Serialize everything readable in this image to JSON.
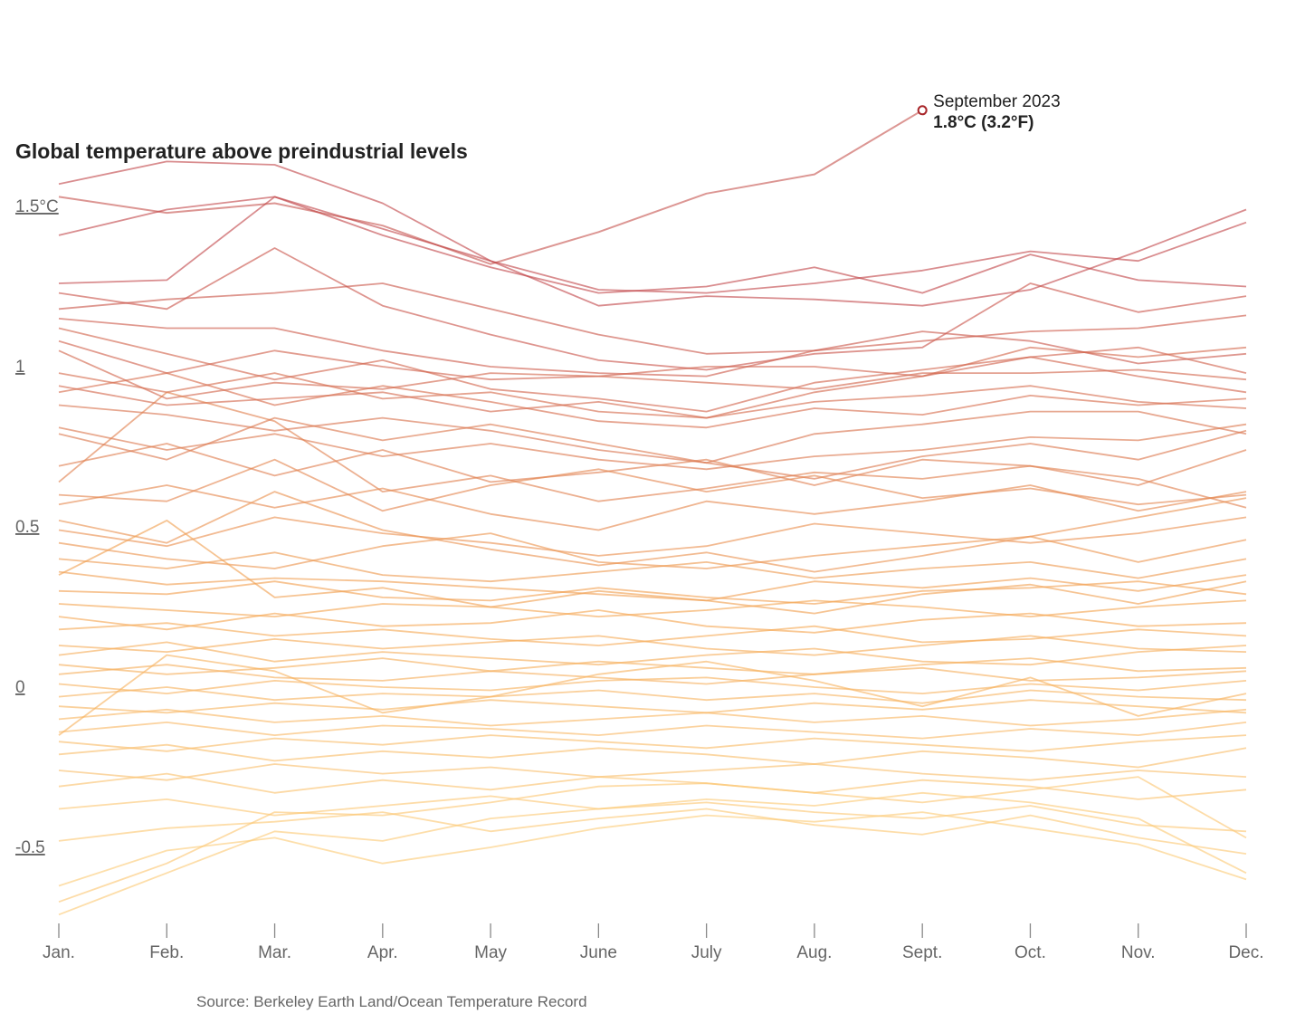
{
  "chart_data": {
    "type": "line",
    "title": "Global temperature above preindustrial levels",
    "categories": [
      "Jan.",
      "Feb.",
      "Mar.",
      "Apr.",
      "May",
      "June",
      "July",
      "Aug.",
      "Sept.",
      "Oct.",
      "Nov.",
      "Dec."
    ],
    "y_ticks": [
      {
        "value": 1.5,
        "label": "1.5°C"
      },
      {
        "value": 1,
        "label": "1"
      },
      {
        "value": 0.5,
        "label": "0.5"
      },
      {
        "value": 0,
        "label": "0"
      },
      {
        "value": -0.5,
        "label": "-0.5"
      }
    ],
    "ylim": [
      -0.72,
      1.72
    ],
    "color_low": "#fdd17e",
    "color_mid": "#f4a450",
    "color_high": "#c2474a",
    "highlight_color": "#c0403a",
    "highlight": {
      "values": [
        1.53,
        1.48,
        1.51,
        1.44,
        1.32,
        1.42,
        1.54,
        1.6,
        1.8
      ],
      "annotation_title": "September 2023",
      "annotation_value": "1.8°C (3.2°F)"
    },
    "series": [
      {
        "values": [
          1.57,
          1.64,
          1.63,
          1.51,
          1.33,
          1.19,
          1.22,
          1.21,
          1.19,
          1.24,
          1.36,
          1.49
        ]
      },
      {
        "values": [
          1.41,
          1.49,
          1.53,
          1.43,
          1.33,
          1.24,
          1.23,
          1.26,
          1.3,
          1.36,
          1.33,
          1.45
        ]
      },
      {
        "values": [
          1.26,
          1.27,
          1.53,
          1.41,
          1.31,
          1.23,
          1.25,
          1.31,
          1.23,
          1.35,
          1.27,
          1.25
        ]
      },
      {
        "values": [
          1.18,
          1.21,
          1.23,
          1.26,
          1.18,
          1.1,
          1.04,
          1.05,
          1.11,
          1.08,
          1.01,
          1.04
        ]
      },
      {
        "values": [
          1.23,
          1.18,
          1.37,
          1.19,
          1.1,
          1.02,
          0.99,
          1.04,
          1.06,
          1.26,
          1.17,
          1.22
        ]
      },
      {
        "values": [
          1.15,
          1.12,
          1.12,
          1.05,
          1.0,
          0.98,
          0.97,
          1.05,
          1.08,
          1.11,
          1.12,
          1.16
        ]
      },
      {
        "values": [
          1.08,
          0.98,
          1.05,
          1.0,
          0.96,
          0.97,
          1.0,
          1.0,
          0.97,
          1.03,
          1.06,
          0.98
        ]
      },
      {
        "values": [
          1.05,
          0.9,
          0.95,
          0.93,
          0.98,
          0.97,
          0.95,
          0.93,
          0.98,
          0.98,
          0.99,
          0.96
        ]
      },
      {
        "values": [
          0.94,
          0.88,
          0.9,
          0.92,
          0.86,
          0.89,
          0.84,
          0.92,
          0.97,
          1.06,
          1.03,
          1.06
        ]
      },
      {
        "values": [
          0.98,
          0.92,
          0.98,
          0.9,
          0.92,
          0.86,
          0.84,
          0.89,
          0.91,
          0.94,
          0.89,
          0.87
        ]
      },
      {
        "values": [
          0.88,
          0.85,
          0.8,
          0.84,
          0.8,
          0.74,
          0.7,
          0.79,
          0.82,
          0.86,
          0.86,
          0.79
        ]
      },
      {
        "values": [
          0.81,
          0.74,
          0.79,
          0.72,
          0.76,
          0.71,
          0.68,
          0.72,
          0.74,
          0.78,
          0.77,
          0.82
        ]
      },
      {
        "values": [
          0.69,
          0.76,
          0.66,
          0.74,
          0.64,
          0.67,
          0.71,
          0.63,
          0.71,
          0.69,
          0.63,
          0.74
        ]
      },
      {
        "values": [
          0.64,
          0.92,
          0.83,
          0.61,
          0.66,
          0.58,
          0.62,
          0.67,
          0.65,
          0.69,
          0.65,
          0.56
        ]
      },
      {
        "values": [
          0.57,
          0.63,
          0.56,
          0.62,
          0.54,
          0.49,
          0.58,
          0.54,
          0.58,
          0.63,
          0.55,
          0.61
        ]
      },
      {
        "values": [
          0.49,
          0.44,
          0.53,
          0.48,
          0.45,
          0.41,
          0.44,
          0.51,
          0.48,
          0.45,
          0.48,
          0.53
        ]
      },
      {
        "values": [
          0.45,
          0.4,
          0.37,
          0.44,
          0.48,
          0.39,
          0.37,
          0.41,
          0.44,
          0.47,
          0.39,
          0.46
        ]
      },
      {
        "values": [
          0.4,
          0.37,
          0.42,
          0.35,
          0.33,
          0.36,
          0.39,
          0.34,
          0.37,
          0.39,
          0.34,
          0.4
        ]
      },
      {
        "values": [
          0.36,
          0.32,
          0.34,
          0.33,
          0.31,
          0.29,
          0.27,
          0.33,
          0.31,
          0.34,
          0.3,
          0.35
        ]
      },
      {
        "values": [
          0.3,
          0.29,
          0.33,
          0.28,
          0.27,
          0.31,
          0.28,
          0.26,
          0.3,
          0.31,
          0.33,
          0.29
        ]
      },
      {
        "values": [
          0.26,
          0.24,
          0.22,
          0.26,
          0.25,
          0.22,
          0.24,
          0.27,
          0.25,
          0.22,
          0.25,
          0.27
        ]
      },
      {
        "values": [
          0.22,
          0.18,
          0.23,
          0.19,
          0.2,
          0.24,
          0.19,
          0.17,
          0.21,
          0.23,
          0.19,
          0.2
        ]
      },
      {
        "values": [
          0.18,
          0.2,
          0.16,
          0.18,
          0.15,
          0.13,
          0.16,
          0.19,
          0.14,
          0.15,
          0.18,
          0.16
        ]
      },
      {
        "values": [
          0.13,
          0.11,
          0.15,
          0.12,
          0.14,
          0.16,
          0.12,
          0.1,
          0.13,
          0.16,
          0.12,
          0.11
        ]
      },
      {
        "values": [
          0.1,
          0.14,
          0.08,
          0.11,
          0.09,
          0.07,
          0.1,
          0.12,
          0.08,
          0.07,
          0.11,
          0.13
        ]
      },
      {
        "values": [
          0.07,
          0.04,
          0.06,
          0.09,
          0.05,
          0.08,
          0.06,
          0.04,
          0.07,
          0.09,
          0.05,
          0.06
        ]
      },
      {
        "values": [
          0.04,
          0.07,
          0.03,
          0.02,
          0.05,
          0.03,
          0.01,
          0.04,
          0.06,
          0.02,
          0.03,
          0.05
        ]
      },
      {
        "values": [
          0.01,
          -0.02,
          0.02,
          0.0,
          -0.01,
          0.02,
          0.03,
          0.0,
          -0.02,
          0.01,
          -0.01,
          0.02
        ]
      },
      {
        "values": [
          -0.03,
          0.0,
          -0.04,
          -0.02,
          -0.03,
          -0.01,
          -0.04,
          -0.02,
          -0.05,
          -0.01,
          -0.03,
          -0.04
        ]
      },
      {
        "values": [
          -0.06,
          -0.08,
          -0.05,
          -0.07,
          -0.04,
          -0.06,
          -0.08,
          -0.05,
          -0.07,
          -0.04,
          -0.06,
          -0.08
        ]
      },
      {
        "values": [
          -0.1,
          -0.07,
          -0.11,
          -0.09,
          -0.12,
          -0.1,
          -0.08,
          -0.11,
          -0.09,
          -0.12,
          -0.1,
          -0.07
        ]
      },
      {
        "values": [
          -0.14,
          -0.11,
          -0.15,
          -0.12,
          -0.13,
          -0.15,
          -0.12,
          -0.14,
          -0.16,
          -0.13,
          -0.15,
          -0.11
        ]
      },
      {
        "values": [
          -0.17,
          -0.2,
          -0.16,
          -0.18,
          -0.15,
          -0.17,
          -0.19,
          -0.16,
          -0.18,
          -0.2,
          -0.17,
          -0.15
        ]
      },
      {
        "values": [
          -0.21,
          -0.18,
          -0.23,
          -0.2,
          -0.22,
          -0.19,
          -0.21,
          -0.24,
          -0.2,
          -0.22,
          -0.25,
          -0.19
        ]
      },
      {
        "values": [
          -0.26,
          -0.29,
          -0.24,
          -0.27,
          -0.25,
          -0.28,
          -0.26,
          -0.24,
          -0.27,
          -0.29,
          -0.26,
          -0.28
        ]
      },
      {
        "values": [
          -0.31,
          -0.27,
          -0.33,
          -0.29,
          -0.32,
          -0.28,
          -0.3,
          -0.33,
          -0.29,
          -0.31,
          -0.35,
          -0.32
        ]
      },
      {
        "values": [
          -0.38,
          -0.35,
          -0.4,
          -0.37,
          -0.34,
          -0.38,
          -0.36,
          -0.39,
          -0.41,
          -0.37,
          -0.43,
          -0.45
        ]
      },
      {
        "values": [
          -0.48,
          -0.44,
          -0.42,
          -0.39,
          -0.45,
          -0.41,
          -0.38,
          -0.43,
          -0.46,
          -0.4,
          -0.47,
          -0.52
        ]
      },
      {
        "values": [
          -0.62,
          -0.51,
          -0.47,
          -0.55,
          -0.5,
          -0.44,
          -0.4,
          -0.42,
          -0.39,
          -0.44,
          -0.49,
          -0.6
        ]
      },
      {
        "values": [
          -0.71,
          -0.58,
          -0.45,
          -0.48,
          -0.41,
          -0.38,
          -0.35,
          -0.37,
          -0.33,
          -0.36,
          -0.41,
          -0.58
        ]
      },
      {
        "values": [
          -0.67,
          -0.55,
          -0.39,
          -0.4,
          -0.36,
          -0.31,
          -0.3,
          -0.33,
          -0.36,
          -0.32,
          -0.28,
          -0.47
        ]
      },
      {
        "values": [
          0.52,
          0.45,
          0.61,
          0.49,
          0.43,
          0.38,
          0.42,
          0.36,
          0.41,
          0.47,
          0.53,
          0.59
        ]
      },
      {
        "values": [
          0.79,
          0.71,
          0.84,
          0.77,
          0.82,
          0.76,
          0.7,
          0.65,
          0.72,
          0.76,
          0.71,
          0.8
        ]
      },
      {
        "values": [
          1.12,
          1.04,
          0.96,
          1.02,
          0.93,
          0.9,
          0.86,
          0.95,
          0.99,
          1.03,
          0.97,
          0.92
        ]
      },
      {
        "values": [
          0.35,
          0.52,
          0.28,
          0.31,
          0.25,
          0.3,
          0.27,
          0.23,
          0.29,
          0.32,
          0.26,
          0.33
        ]
      },
      {
        "values": [
          -0.15,
          0.1,
          0.05,
          -0.08,
          -0.03,
          0.04,
          0.08,
          0.02,
          -0.06,
          0.03,
          -0.09,
          -0.02
        ]
      },
      {
        "values": [
          0.6,
          0.58,
          0.71,
          0.55,
          0.63,
          0.68,
          0.61,
          0.66,
          0.59,
          0.62,
          0.57,
          0.6
        ]
      },
      {
        "values": [
          0.92,
          0.98,
          0.88,
          0.94,
          0.89,
          0.83,
          0.81,
          0.87,
          0.85,
          0.91,
          0.88,
          0.9
        ]
      }
    ],
    "source": "Source: Berkeley Earth Land/Ocean Temperature Record"
  }
}
